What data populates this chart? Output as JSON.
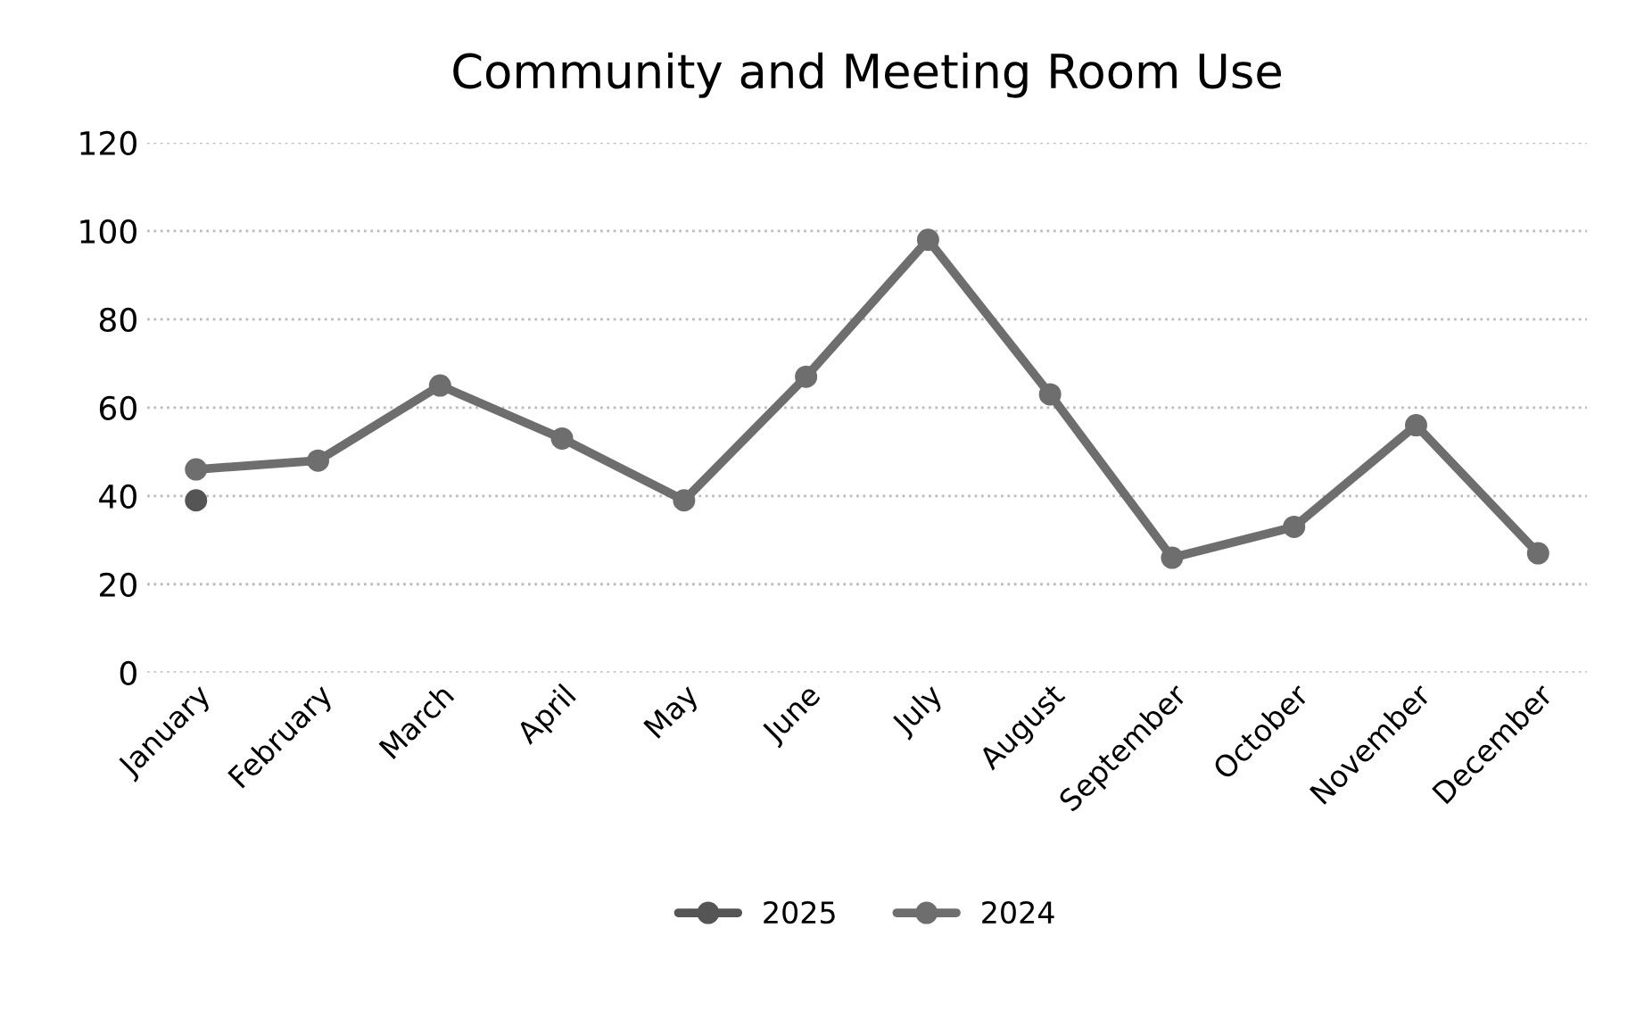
{
  "chart_data": {
    "type": "line",
    "title": "Community and Meeting Room Use",
    "categories": [
      "January",
      "February",
      "March",
      "April",
      "May",
      "June",
      "July",
      "August",
      "September",
      "October",
      "November",
      "December"
    ],
    "series": [
      {
        "name": "2025",
        "color": "#555555",
        "values": [
          39,
          null,
          null,
          null,
          null,
          null,
          null,
          null,
          null,
          null,
          null,
          null
        ]
      },
      {
        "name": "2024",
        "color": "#6e6e6e",
        "values": [
          46,
          48,
          65,
          53,
          39,
          67,
          98,
          63,
          26,
          33,
          56,
          27
        ]
      }
    ],
    "ylim": [
      0,
      120
    ],
    "yticks": [
      0,
      20,
      40,
      60,
      80,
      100,
      120
    ],
    "grid": "y",
    "legend": "bottom",
    "marker": "circle",
    "line_style": "solid"
  }
}
